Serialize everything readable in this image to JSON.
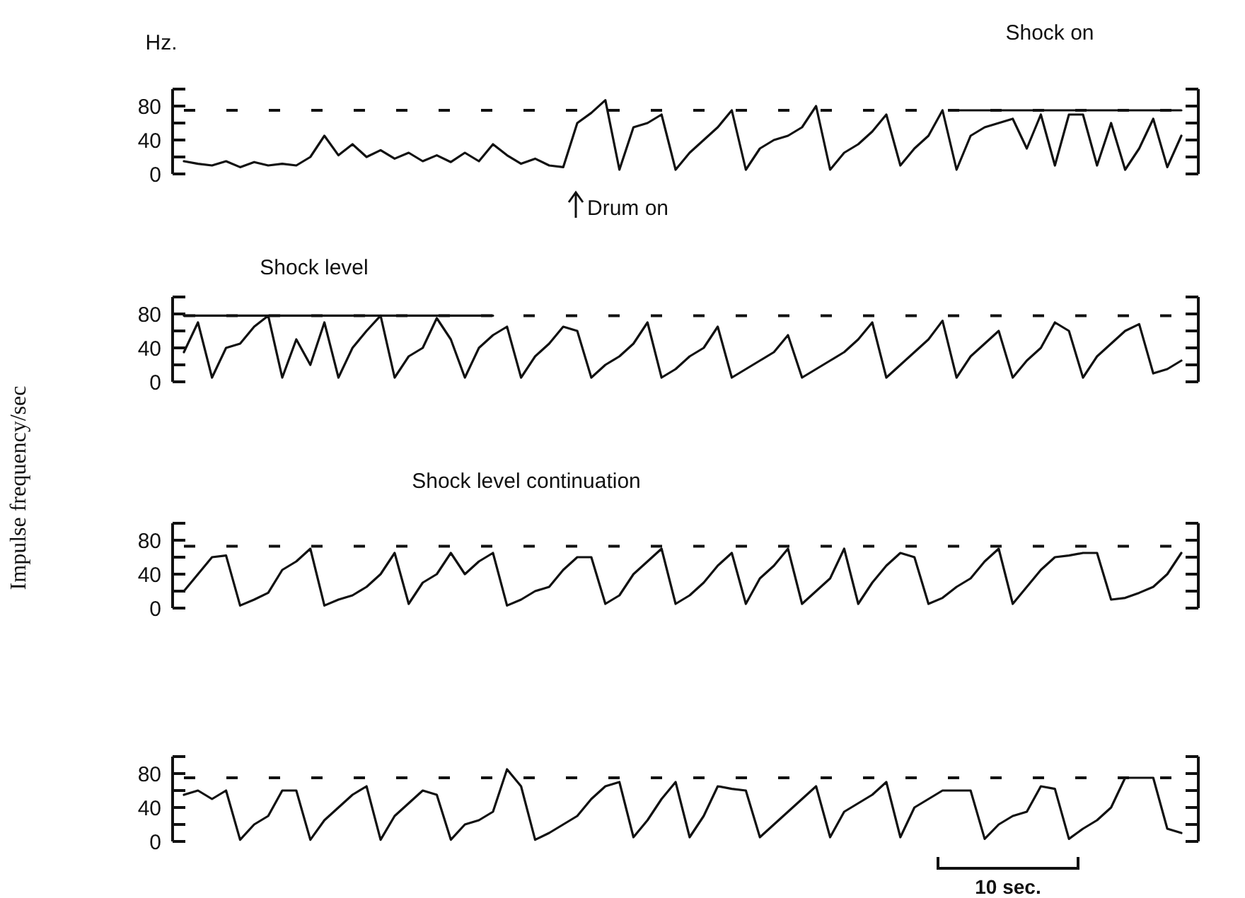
{
  "chart_data": [
    {
      "type": "line",
      "ylabel": "Hz.",
      "ylim": [
        0,
        100
      ],
      "yticks": [
        0,
        {
          "value": 20,
          "label": null
        },
        40,
        {
          "value": 60,
          "label": null
        },
        80,
        {
          "value": 100,
          "label": null
        }
      ],
      "tick_labels": "y",
      "line_style": "solid",
      "marker": "none",
      "grid": false,
      "categories": [
        null,
        null,
        null,
        null,
        null,
        null,
        null,
        null,
        null,
        null,
        null,
        null,
        null,
        null,
        null,
        null,
        null,
        null,
        null,
        null,
        null,
        null,
        null,
        null,
        null,
        null,
        null,
        null,
        null,
        null,
        null,
        null,
        null,
        null,
        null,
        null,
        null,
        null,
        null,
        null,
        null,
        null,
        null,
        null,
        null,
        null,
        null,
        null,
        null,
        null,
        null,
        null,
        null,
        null,
        null,
        null,
        null,
        null,
        null,
        null,
        null,
        null,
        null,
        null,
        null,
        null,
        null,
        null,
        null,
        null,
        null,
        null
      ],
      "ref_lines": [
        {
          "axis": "y",
          "value": 75,
          "line_style": "dashed",
          "color": "#111111"
        }
      ],
      "annotations": [
        "Drum on",
        "Shock on"
      ],
      "series": [
        {
          "color": "#111111",
          "values": [
            15,
            12,
            10,
            15,
            8,
            14,
            10,
            12,
            10,
            20,
            45,
            22,
            35,
            20,
            28,
            18,
            25,
            15,
            22,
            14,
            25,
            15,
            35,
            22,
            12,
            18,
            10,
            8,
            60,
            72,
            87,
            5,
            55,
            60,
            70,
            5,
            25,
            40,
            55,
            75,
            5,
            30,
            40,
            45,
            55,
            80,
            5,
            25,
            35,
            50,
            70,
            10,
            30,
            45,
            75,
            5,
            45,
            55,
            60,
            65,
            30,
            70,
            10,
            70,
            70,
            10,
            60,
            5,
            30,
            65,
            8,
            45
          ]
        },
        {
          "color": "#111111",
          "values": [
            null,
            null,
            null,
            null,
            null,
            null,
            null,
            null,
            null,
            null,
            null,
            null,
            null,
            null,
            null,
            null,
            null,
            null,
            null,
            null,
            null,
            null,
            null,
            null,
            null,
            null,
            null,
            null,
            null,
            null,
            null,
            null,
            null,
            null,
            null,
            null,
            null,
            null,
            null,
            null,
            null,
            null,
            null,
            null,
            null,
            null,
            null,
            null,
            null,
            null,
            null,
            null,
            null,
            null,
            null,
            75,
            75,
            75,
            75,
            75,
            75,
            75,
            75,
            75,
            75,
            75,
            75,
            75,
            75,
            75,
            75,
            75
          ]
        }
      ]
    },
    {
      "type": "line",
      "ylabel": "Impulse frequency/sec",
      "ylim": [
        0,
        100
      ],
      "yticks": [
        0,
        {
          "value": 20,
          "label": null
        },
        40,
        {
          "value": 60,
          "label": null
        },
        80,
        {
          "value": 100,
          "label": null
        }
      ],
      "tick_labels": "y",
      "line_style": "solid",
      "marker": "none",
      "grid": false,
      "categories": [
        null,
        null,
        null,
        null,
        null,
        null,
        null,
        null,
        null,
        null,
        null,
        null,
        null,
        null,
        null,
        null,
        null,
        null,
        null,
        null,
        null,
        null,
        null,
        null,
        null,
        null,
        null,
        null,
        null,
        null,
        null,
        null,
        null,
        null,
        null,
        null,
        null,
        null,
        null,
        null,
        null,
        null,
        null,
        null,
        null,
        null,
        null,
        null,
        null,
        null,
        null,
        null,
        null,
        null,
        null,
        null,
        null,
        null,
        null,
        null,
        null,
        null,
        null,
        null,
        null,
        null,
        null,
        null,
        null,
        null,
        null,
        null
      ],
      "ref_lines": [
        {
          "axis": "y",
          "value": 78,
          "line_style": "dashed",
          "color": "#111111"
        }
      ],
      "annotations": [
        "Shock level"
      ],
      "series": [
        {
          "color": "#111111",
          "values": [
            35,
            70,
            5,
            40,
            45,
            65,
            78,
            5,
            50,
            20,
            70,
            5,
            40,
            60,
            78,
            5,
            30,
            40,
            75,
            50,
            5,
            40,
            55,
            65,
            5,
            30,
            45,
            65,
            60,
            5,
            20,
            30,
            45,
            70,
            5,
            15,
            30,
            40,
            65,
            5,
            15,
            25,
            35,
            55,
            5,
            15,
            25,
            35,
            50,
            70,
            5,
            20,
            35,
            50,
            72,
            5,
            30,
            45,
            60,
            5,
            25,
            40,
            70,
            60,
            5,
            30,
            45,
            60,
            68,
            10,
            15,
            25
          ]
        },
        {
          "color": "#111111",
          "values": [
            78,
            78,
            78,
            78,
            78,
            78,
            78,
            78,
            78,
            78,
            78,
            78,
            78,
            78,
            78,
            78,
            78,
            78,
            78,
            78,
            78,
            78,
            78,
            null,
            null,
            null,
            null,
            null,
            null,
            null,
            null,
            null,
            null,
            null,
            null,
            null,
            null,
            null,
            null,
            null,
            null,
            null,
            null,
            null,
            null,
            null,
            null,
            null,
            null,
            null,
            null,
            null,
            null,
            null,
            null,
            null,
            null,
            null,
            null,
            null,
            null,
            null,
            null,
            null,
            null,
            null,
            null,
            null,
            null,
            null,
            null,
            null
          ]
        }
      ]
    },
    {
      "type": "line",
      "ylim": [
        0,
        100
      ],
      "yticks": [
        0,
        {
          "value": 20,
          "label": null
        },
        40,
        {
          "value": 60,
          "label": null
        },
        80,
        {
          "value": 100,
          "label": null
        }
      ],
      "tick_labels": "y",
      "line_style": "solid",
      "marker": "none",
      "grid": false,
      "categories": [
        null,
        null,
        null,
        null,
        null,
        null,
        null,
        null,
        null,
        null,
        null,
        null,
        null,
        null,
        null,
        null,
        null,
        null,
        null,
        null,
        null,
        null,
        null,
        null,
        null,
        null,
        null,
        null,
        null,
        null,
        null,
        null,
        null,
        null,
        null,
        null,
        null,
        null,
        null,
        null,
        null,
        null,
        null,
        null,
        null,
        null,
        null,
        null,
        null,
        null,
        null,
        null,
        null,
        null,
        null,
        null,
        null,
        null,
        null,
        null,
        null,
        null,
        null,
        null,
        null,
        null,
        null,
        null,
        null,
        null,
        null,
        null
      ],
      "ref_lines": [
        {
          "axis": "y",
          "value": 73,
          "line_style": "dashed",
          "color": "#111111"
        }
      ],
      "annotations": [
        "Shock level continuation"
      ],
      "series": [
        {
          "color": "#111111",
          "values": [
            20,
            40,
            60,
            62,
            3,
            10,
            18,
            45,
            55,
            70,
            3,
            10,
            15,
            25,
            40,
            65,
            5,
            30,
            40,
            65,
            40,
            55,
            65,
            3,
            10,
            20,
            25,
            45,
            60,
            60,
            5,
            15,
            40,
            55,
            70,
            5,
            15,
            30,
            50,
            65,
            5,
            35,
            50,
            70,
            5,
            20,
            35,
            70,
            5,
            30,
            50,
            65,
            60,
            5,
            12,
            25,
            35,
            55,
            70,
            5,
            25,
            45,
            60,
            62,
            65,
            65,
            10,
            12,
            18,
            25,
            40,
            65
          ]
        }
      ]
    },
    {
      "type": "line",
      "ylim": [
        0,
        100
      ],
      "yticks": [
        0,
        {
          "value": 20,
          "label": null
        },
        40,
        {
          "value": 60,
          "label": null
        },
        80,
        {
          "value": 100,
          "label": null
        }
      ],
      "tick_labels": "y",
      "line_style": "solid",
      "marker": "none",
      "grid": false,
      "categories": [
        null,
        null,
        null,
        null,
        null,
        null,
        null,
        null,
        null,
        null,
        null,
        null,
        null,
        null,
        null,
        null,
        null,
        null,
        null,
        null,
        null,
        null,
        null,
        null,
        null,
        null,
        null,
        null,
        null,
        null,
        null,
        null,
        null,
        null,
        null,
        null,
        null,
        null,
        null,
        null,
        null,
        null,
        null,
        null,
        null,
        null,
        null,
        null,
        null,
        null,
        null,
        null,
        null,
        null,
        null,
        null,
        null,
        null,
        null,
        null,
        null,
        null,
        null,
        null,
        null,
        null,
        null,
        null,
        null,
        null,
        null,
        null
      ],
      "ref_lines": [
        {
          "axis": "y",
          "value": 75,
          "line_style": "dashed",
          "color": "#111111"
        }
      ],
      "annotations": [
        "10 sec."
      ],
      "series": [
        {
          "color": "#111111",
          "values": [
            55,
            60,
            50,
            60,
            2,
            20,
            30,
            60,
            60,
            2,
            25,
            40,
            55,
            65,
            2,
            30,
            45,
            60,
            55,
            2,
            20,
            25,
            35,
            85,
            65,
            2,
            10,
            20,
            30,
            50,
            65,
            70,
            5,
            25,
            50,
            70,
            5,
            30,
            65,
            62,
            60,
            5,
            20,
            35,
            50,
            65,
            5,
            35,
            45,
            55,
            70,
            5,
            40,
            50,
            60,
            60,
            60,
            3,
            20,
            30,
            35,
            65,
            62,
            3,
            15,
            25,
            40,
            75,
            75,
            75,
            15,
            10
          ]
        }
      ]
    }
  ]
}
